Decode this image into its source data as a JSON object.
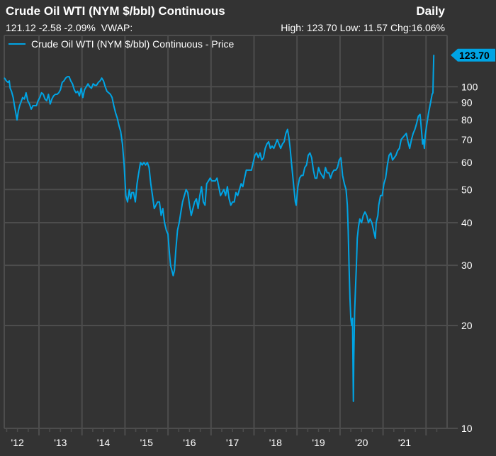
{
  "header": {
    "title": "Crude Oil WTI (NYM $/bbl) Continuous",
    "frequency": "Daily",
    "quote": "121.12 -2.58 -2.09%",
    "vwap_label": "VWAP:",
    "high_label": "High:",
    "high": "123.70",
    "low_label": "Low:",
    "low": "11.57",
    "chg_label": "Chg:",
    "chg": "16.06%"
  },
  "chart_data": {
    "type": "line",
    "title": "Crude Oil WTI (NYM $/bbl) Continuous",
    "legend": [
      {
        "name": "Crude Oil WTI (NYM $/bbl) Continuous - Price",
        "color": "#00a4e4"
      }
    ],
    "legend_position": "top-left",
    "yscale": "log",
    "ylim": [
      10,
      130
    ],
    "yticks": [
      10,
      20,
      30,
      40,
      50,
      60,
      70,
      80,
      90,
      100
    ],
    "ytick_labels": [
      "10",
      "20",
      "30",
      "40",
      "50",
      "60",
      "70",
      "80",
      "90",
      "100"
    ],
    "xlim": [
      2012.2,
      2022.35
    ],
    "xticks": [
      2012,
      2013,
      2014,
      2015,
      2016,
      2017,
      2018,
      2019,
      2020,
      2021
    ],
    "xtick_labels": [
      "'12",
      "'13",
      "'14",
      "'15",
      "'16",
      "'17",
      "'18",
      "'19",
      "'20",
      "'21"
    ],
    "grid": true,
    "last_value_label": "123.70",
    "series": [
      {
        "name": "Crude Oil WTI (NYM $/bbl) Continuous - Price",
        "color": "#00a4e4",
        "x": [
          2012.2,
          2012.24,
          2012.28,
          2012.31,
          2012.33,
          2012.36,
          2012.4,
          2012.43,
          2012.46,
          2012.49,
          2012.52,
          2012.55,
          2012.58,
          2012.62,
          2012.66,
          2012.7,
          2012.74,
          2012.78,
          2012.82,
          2012.86,
          2012.9,
          2012.94,
          2012.98,
          2013.02,
          2013.06,
          2013.1,
          2013.14,
          2013.18,
          2013.22,
          2013.26,
          2013.3,
          2013.34,
          2013.38,
          2013.42,
          2013.46,
          2013.5,
          2013.54,
          2013.58,
          2013.62,
          2013.66,
          2013.7,
          2013.74,
          2013.78,
          2013.82,
          2013.86,
          2013.9,
          2013.94,
          2013.98,
          2014.02,
          2014.06,
          2014.1,
          2014.14,
          2014.18,
          2014.22,
          2014.26,
          2014.3,
          2014.34,
          2014.38,
          2014.42,
          2014.46,
          2014.5,
          2014.54,
          2014.58,
          2014.62,
          2014.66,
          2014.7,
          2014.74,
          2014.78,
          2014.82,
          2014.86,
          2014.9,
          2014.94,
          2014.98,
          2015.02,
          2015.06,
          2015.1,
          2015.13,
          2015.16,
          2015.2,
          2015.24,
          2015.28,
          2015.32,
          2015.36,
          2015.4,
          2015.44,
          2015.48,
          2015.52,
          2015.56,
          2015.6,
          2015.64,
          2015.68,
          2015.72,
          2015.76,
          2015.8,
          2015.84,
          2015.88,
          2015.92,
          2015.96,
          2016.0,
          2016.03,
          2016.06,
          2016.09,
          2016.12,
          2016.15,
          2016.18,
          2016.22,
          2016.26,
          2016.3,
          2016.34,
          2016.38,
          2016.42,
          2016.46,
          2016.5,
          2016.54,
          2016.58,
          2016.62,
          2016.66,
          2016.7,
          2016.74,
          2016.78,
          2016.82,
          2016.86,
          2016.9,
          2016.94,
          2016.98,
          2017.02,
          2017.06,
          2017.1,
          2017.14,
          2017.18,
          2017.22,
          2017.26,
          2017.3,
          2017.34,
          2017.38,
          2017.42,
          2017.46,
          2017.5,
          2017.54,
          2017.58,
          2017.62,
          2017.66,
          2017.7,
          2017.74,
          2017.78,
          2017.82,
          2017.86,
          2017.9,
          2017.94,
          2017.98,
          2018.02,
          2018.06,
          2018.1,
          2018.14,
          2018.18,
          2018.22,
          2018.26,
          2018.3,
          2018.34,
          2018.38,
          2018.42,
          2018.46,
          2018.5,
          2018.54,
          2018.58,
          2018.62,
          2018.66,
          2018.7,
          2018.74,
          2018.78,
          2018.81,
          2018.84,
          2018.87,
          2018.9,
          2018.93,
          2018.96,
          2018.98,
          2019.02,
          2019.06,
          2019.1,
          2019.14,
          2019.18,
          2019.22,
          2019.26,
          2019.3,
          2019.34,
          2019.38,
          2019.42,
          2019.46,
          2019.5,
          2019.54,
          2019.58,
          2019.62,
          2019.66,
          2019.7,
          2019.74,
          2019.78,
          2019.82,
          2019.86,
          2019.9,
          2019.94,
          2019.98,
          2020.02,
          2020.06,
          2020.1,
          2020.14,
          2020.17,
          2020.19,
          2020.21,
          2020.23,
          2020.25,
          2020.27,
          2020.29,
          2020.3,
          2020.31,
          2020.32,
          2020.34,
          2020.36,
          2020.38,
          2020.4,
          2020.43,
          2020.46,
          2020.5,
          2020.54,
          2020.58,
          2020.62,
          2020.66,
          2020.7,
          2020.74,
          2020.78,
          2020.82,
          2020.84,
          2020.86,
          2020.88,
          2020.9,
          2020.94,
          2020.98,
          2021.02,
          2021.06,
          2021.1,
          2021.14,
          2021.18,
          2021.22,
          2021.26,
          2021.3,
          2021.34,
          2021.38,
          2021.42,
          2021.46,
          2021.5,
          2021.54,
          2021.58,
          2021.62,
          2021.64,
          2021.66,
          2021.7,
          2021.74,
          2021.78,
          2021.82,
          2021.86,
          2021.88,
          2021.9,
          2021.92,
          2021.94,
          2021.96,
          2021.98,
          2022.02,
          2022.06,
          2022.09,
          2022.12,
          2022.14,
          2022.16,
          2022.17,
          2022.18
        ],
        "values": [
          106,
          104,
          103,
          104,
          99,
          97,
          93,
          88,
          84,
          80,
          85,
          88,
          90,
          93,
          92,
          96,
          91,
          89,
          86,
          88,
          88,
          88,
          91,
          93,
          96,
          95,
          92,
          91,
          95,
          89,
          92,
          94,
          95,
          95,
          96,
          98,
          103,
          104,
          106,
          107,
          107,
          104,
          102,
          98,
          96,
          97,
          94,
          99,
          93,
          98,
          100,
          102,
          100,
          99,
          102,
          101,
          101,
          103,
          104,
          106,
          104,
          100,
          97,
          96,
          95,
          93,
          88,
          84,
          81,
          77,
          74,
          68,
          59,
          48,
          46,
          50,
          47,
          49,
          49,
          46,
          52,
          56,
          60,
          59,
          60,
          59,
          60,
          58,
          52,
          48,
          44,
          45,
          46,
          46,
          42,
          44,
          40,
          38,
          37,
          33,
          30,
          29,
          28,
          29,
          33,
          38,
          40,
          43,
          46,
          48,
          50,
          49,
          45,
          42,
          44,
          46,
          47,
          44,
          48,
          51,
          46,
          45,
          52,
          53,
          54,
          53,
          53,
          53,
          54,
          51,
          48,
          49,
          50,
          48,
          51,
          47,
          45,
          46,
          46,
          49,
          48,
          50,
          52,
          51,
          54,
          57,
          57,
          57,
          57,
          60,
          63,
          64,
          62,
          64,
          61,
          62,
          66,
          68,
          69,
          66,
          67,
          66,
          68,
          70,
          68,
          66,
          68,
          69,
          73,
          75,
          71,
          66,
          60,
          55,
          50,
          46,
          45,
          51,
          54,
          55,
          55,
          58,
          59,
          63,
          64,
          62,
          57,
          54,
          54,
          58,
          56,
          55,
          54,
          58,
          56,
          56,
          54,
          56,
          57,
          57,
          58,
          61,
          62,
          55,
          52,
          50,
          45,
          38,
          30,
          24,
          21,
          20,
          21,
          16,
          12,
          16,
          22,
          26,
          30,
          36,
          39,
          41,
          40,
          42,
          43,
          42,
          40,
          41,
          40,
          38,
          36,
          40,
          41,
          42,
          45,
          48,
          48,
          52,
          54,
          59,
          63,
          64,
          61,
          62,
          63,
          65,
          66,
          70,
          71,
          72,
          73,
          69,
          66,
          68,
          70,
          73,
          75,
          78,
          82,
          83,
          78,
          73,
          68,
          70,
          66,
          72,
          78,
          84,
          88,
          92,
          95,
          96,
          110,
          123.7
        ]
      }
    ]
  }
}
